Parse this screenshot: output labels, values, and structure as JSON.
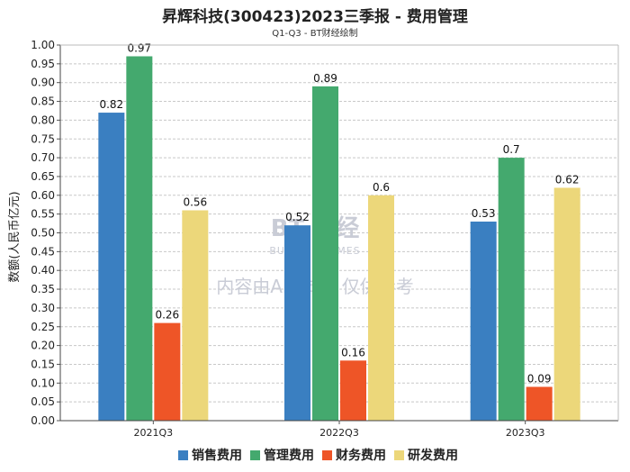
{
  "chart_data": {
    "type": "bar",
    "title": "昇辉科技(300423)2023三季报 - 费用管理",
    "subtitle": "Q1-Q3 - BT财经绘制",
    "ylabel": "数额(人民币亿元)",
    "xlabel": "",
    "categories": [
      "2021Q3",
      "2022Q3",
      "2023Q3"
    ],
    "ylim": [
      0,
      1.0
    ],
    "yticks": [
      "0.00",
      "0.05",
      "0.10",
      "0.15",
      "0.20",
      "0.25",
      "0.30",
      "0.35",
      "0.40",
      "0.45",
      "0.50",
      "0.55",
      "0.60",
      "0.65",
      "0.70",
      "0.75",
      "0.80",
      "0.85",
      "0.90",
      "0.95",
      "1.00"
    ],
    "grid": true,
    "legend_position": "bottom",
    "series": [
      {
        "name": "销售费用",
        "color": "#3a7fc1",
        "values": [
          0.82,
          0.52,
          0.53
        ],
        "labels": [
          "0.82",
          "0.52",
          "0.53"
        ]
      },
      {
        "name": "管理费用",
        "color": "#44a96e",
        "values": [
          0.97,
          0.89,
          0.7
        ],
        "labels": [
          "0.97",
          "0.89",
          "0.7"
        ]
      },
      {
        "name": "财务费用",
        "color": "#ee5527",
        "values": [
          0.26,
          0.16,
          0.09
        ],
        "labels": [
          "0.26",
          "0.16",
          "0.09"
        ]
      },
      {
        "name": "研发费用",
        "color": "#ecd77a",
        "values": [
          0.56,
          0.6,
          0.62
        ],
        "labels": [
          "0.56",
          "0.6",
          "0.62"
        ]
      }
    ]
  },
  "watermark": {
    "brand": "BT 财经",
    "brand_en": "BUSINESSTIMES",
    "notice": "内容由AI生成，仅供参考"
  }
}
